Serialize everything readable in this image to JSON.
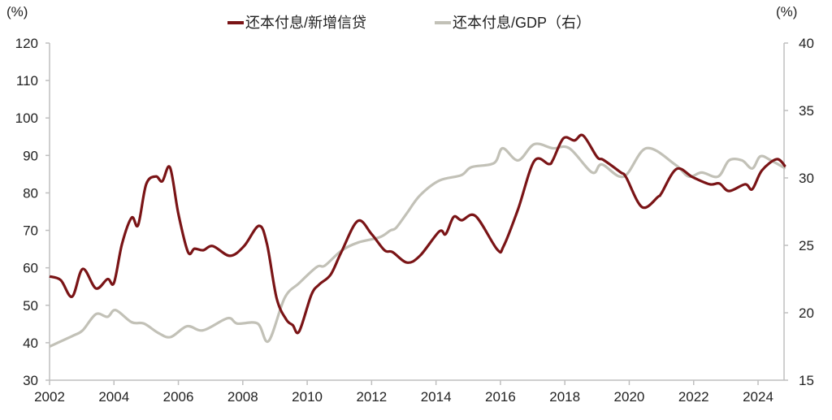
{
  "chart_data": {
    "type": "line",
    "title": "",
    "xlabel": "",
    "ylabel": "(%)",
    "ylabel_right": "(%)",
    "xlim": [
      2002,
      2024.85
    ],
    "ylim": [
      30,
      120
    ],
    "ylim_right": [
      15,
      40
    ],
    "x_ticks": [
      "2002",
      "2004",
      "2006",
      "2008",
      "2010",
      "2012",
      "2014",
      "2016",
      "2018",
      "2020",
      "2022",
      "2024"
    ],
    "y_ticks": [
      "30",
      "40",
      "50",
      "60",
      "70",
      "80",
      "90",
      "100",
      "110",
      "120"
    ],
    "y_ticks_right": [
      "15",
      "20",
      "25",
      "30",
      "35",
      "40"
    ],
    "grid": false,
    "legend_position": "top-center",
    "colors": {
      "series1": "#7a1416",
      "series2": "#c2c1b7",
      "axis": "#bfbfbf"
    },
    "series": [
      {
        "name": "还本付息/新增信贷",
        "axis": "left",
        "points": [
          [
            2002.0,
            57.7
          ],
          [
            2002.35,
            56.7
          ],
          [
            2002.7,
            52.3
          ],
          [
            2003.03,
            59.7
          ],
          [
            2003.44,
            54.5
          ],
          [
            2003.8,
            57
          ],
          [
            2004.0,
            56
          ],
          [
            2004.25,
            66.4
          ],
          [
            2004.55,
            73.4
          ],
          [
            2004.75,
            71.4
          ],
          [
            2005.0,
            82.3
          ],
          [
            2005.3,
            84.4
          ],
          [
            2005.5,
            83.1
          ],
          [
            2005.74,
            86.8
          ],
          [
            2006.0,
            74.4
          ],
          [
            2006.3,
            64.2
          ],
          [
            2006.5,
            65.1
          ],
          [
            2006.77,
            64.7
          ],
          [
            2007.07,
            65.8
          ],
          [
            2007.6,
            63.2
          ],
          [
            2008.04,
            65.8
          ],
          [
            2008.5,
            71.2
          ],
          [
            2008.75,
            66.4
          ],
          [
            2009.05,
            51.9
          ],
          [
            2009.35,
            46.2
          ],
          [
            2009.55,
            44.7
          ],
          [
            2009.75,
            43
          ],
          [
            2010.13,
            52.8
          ],
          [
            2010.38,
            55.6
          ],
          [
            2010.73,
            58.2
          ],
          [
            2011.06,
            64.2
          ],
          [
            2011.57,
            72.5
          ],
          [
            2012.0,
            69
          ],
          [
            2012.4,
            64.7
          ],
          [
            2012.65,
            64.2
          ],
          [
            2013.1,
            61.4
          ],
          [
            2013.5,
            63.2
          ],
          [
            2014.1,
            69.7
          ],
          [
            2014.3,
            69
          ],
          [
            2014.55,
            73.6
          ],
          [
            2014.8,
            72.7
          ],
          [
            2015.23,
            73.8
          ],
          [
            2015.9,
            64.9
          ],
          [
            2016.1,
            65.8
          ],
          [
            2016.55,
            75.7
          ],
          [
            2017.05,
            88.5
          ],
          [
            2017.5,
            87.7
          ],
          [
            2017.63,
            88.8
          ],
          [
            2017.96,
            94.6
          ],
          [
            2018.3,
            94
          ],
          [
            2018.57,
            95.3
          ],
          [
            2019.0,
            89.6
          ],
          [
            2019.2,
            88.8
          ],
          [
            2019.73,
            85.5
          ],
          [
            2019.9,
            84.2
          ],
          [
            2020.4,
            76.2
          ],
          [
            2020.9,
            79
          ],
          [
            2021.0,
            79.9
          ],
          [
            2021.47,
            86.4
          ],
          [
            2021.97,
            84.2
          ],
          [
            2022.5,
            82.3
          ],
          [
            2022.8,
            82.5
          ],
          [
            2023.1,
            80.5
          ],
          [
            2023.6,
            82.3
          ],
          [
            2023.82,
            81
          ],
          [
            2024.12,
            86
          ],
          [
            2024.58,
            89
          ],
          [
            2024.85,
            87
          ]
        ]
      },
      {
        "name": "还本付息/GDP（右）",
        "axis": "right",
        "points": [
          [
            2002.0,
            17.5
          ],
          [
            2002.73,
            18.3
          ],
          [
            2003.03,
            18.7
          ],
          [
            2003.44,
            19.9
          ],
          [
            2003.8,
            19.7
          ],
          [
            2004.05,
            20.2
          ],
          [
            2004.55,
            19.3
          ],
          [
            2004.93,
            19.2
          ],
          [
            2005.38,
            18.5
          ],
          [
            2005.76,
            18.2
          ],
          [
            2006.27,
            19.0
          ],
          [
            2006.77,
            18.7
          ],
          [
            2007.53,
            19.6
          ],
          [
            2007.83,
            19.2
          ],
          [
            2008.46,
            19.2
          ],
          [
            2008.8,
            17.9
          ],
          [
            2009.3,
            21.1
          ],
          [
            2009.75,
            22.2
          ],
          [
            2010.3,
            23.4
          ],
          [
            2010.55,
            23.5
          ],
          [
            2011.06,
            24.6
          ],
          [
            2011.57,
            25.2
          ],
          [
            2012.25,
            25.6
          ],
          [
            2012.58,
            26.1
          ],
          [
            2012.76,
            26.3
          ],
          [
            2013.1,
            27.4
          ],
          [
            2013.5,
            28.7
          ],
          [
            2014.1,
            29.8
          ],
          [
            2014.78,
            30.2
          ],
          [
            2015.1,
            30.8
          ],
          [
            2015.8,
            31.1
          ],
          [
            2016.07,
            32.2
          ],
          [
            2016.55,
            31.3
          ],
          [
            2017.05,
            32.5
          ],
          [
            2017.63,
            32.2
          ],
          [
            2018.14,
            32.2
          ],
          [
            2018.85,
            30.4
          ],
          [
            2019.15,
            31.0
          ],
          [
            2019.83,
            30.1
          ],
          [
            2020.53,
            32.2
          ],
          [
            2021.42,
            31.0
          ],
          [
            2021.85,
            30.1
          ],
          [
            2022.25,
            30.4
          ],
          [
            2022.76,
            30.1
          ],
          [
            2023.1,
            31.3
          ],
          [
            2023.5,
            31.3
          ],
          [
            2023.82,
            30.7
          ],
          [
            2024.07,
            31.6
          ],
          [
            2024.4,
            31.3
          ],
          [
            2024.85,
            30.7
          ]
        ]
      }
    ]
  }
}
